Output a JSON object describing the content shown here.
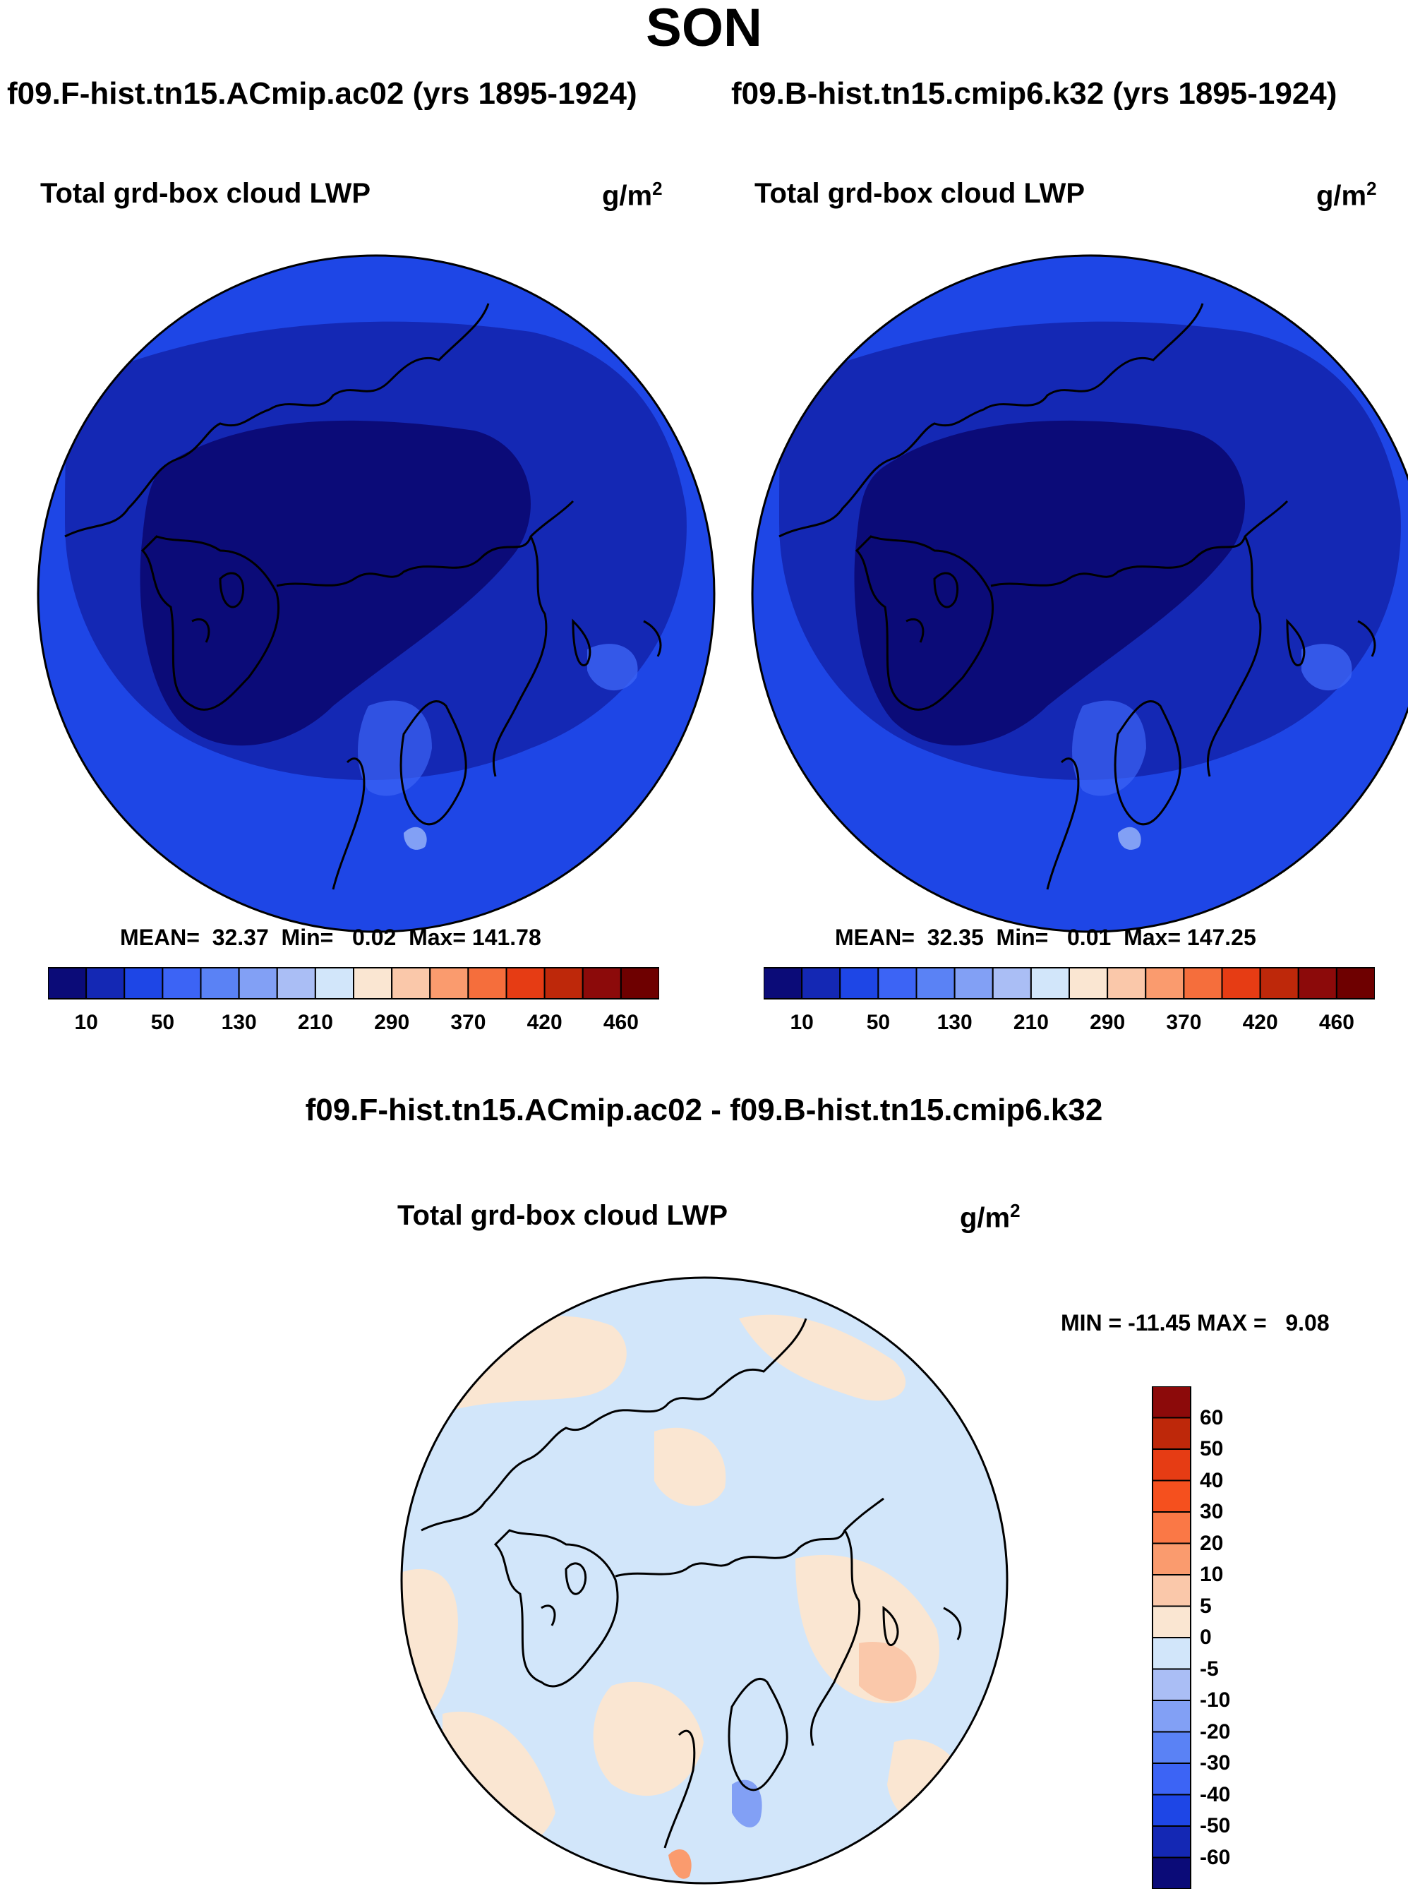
{
  "title": "SON",
  "panels": [
    {
      "case_title": "f09.F-hist.tn15.ACmip.ac02 (yrs 1895-1924)",
      "variable": "Total grd-box cloud LWP",
      "units_base": "g/m",
      "units_exp": "2",
      "stats": {
        "mean": "32.37",
        "min": "0.02",
        "max": "141.78"
      },
      "stats_text": "MEAN=  32.37  Min=   0.02  Max= 141.78"
    },
    {
      "case_title": "f09.B-hist.tn15.cmip6.k32 (yrs 1895-1924)",
      "variable": "Total grd-box cloud LWP",
      "units_base": "g/m",
      "units_exp": "2",
      "stats": {
        "mean": "32.35",
        "min": "0.01",
        "max": "147.25"
      },
      "stats_text": "MEAN=  32.35  Min=   0.01  Max= 147.25"
    }
  ],
  "colorbar": {
    "colors": [
      "#0b0b78",
      "#1428b4",
      "#1e46e6",
      "#3c64f5",
      "#5a82f5",
      "#82a0f5",
      "#aabef5",
      "#d2e6fa",
      "#fae6d2",
      "#fac8aa",
      "#fa9b6e",
      "#f56e3c",
      "#e63c14",
      "#be280a",
      "#8c0a0a",
      "#6e0000"
    ],
    "tick_labels": [
      "10",
      "50",
      "130",
      "210",
      "290",
      "370",
      "420",
      "460"
    ]
  },
  "difference": {
    "title": "f09.F-hist.tn15.ACmip.ac02 - f09.B-hist.tn15.cmip6.k32",
    "variable": "Total grd-box cloud LWP",
    "units_base": "g/m",
    "units_exp": "2",
    "minmax_text": "MIN = -11.45 MAX =   9.08",
    "min": -11.45,
    "max": 9.08,
    "colorbar": {
      "colors": [
        "#8c0a0a",
        "#be280a",
        "#e63c14",
        "#f5501e",
        "#fa7846",
        "#fa9b6e",
        "#fac8aa",
        "#fae6d2",
        "#d2e6fa",
        "#aabef5",
        "#82a0f5",
        "#5a82f5",
        "#3c64f5",
        "#1e46e6",
        "#1428b4",
        "#0b0b78"
      ],
      "tick_labels": [
        "60",
        "50",
        "40",
        "30",
        "20",
        "10",
        "5",
        "0",
        "-5",
        "-10",
        "-20",
        "-30",
        "-40",
        "-50",
        "-60"
      ]
    }
  }
}
